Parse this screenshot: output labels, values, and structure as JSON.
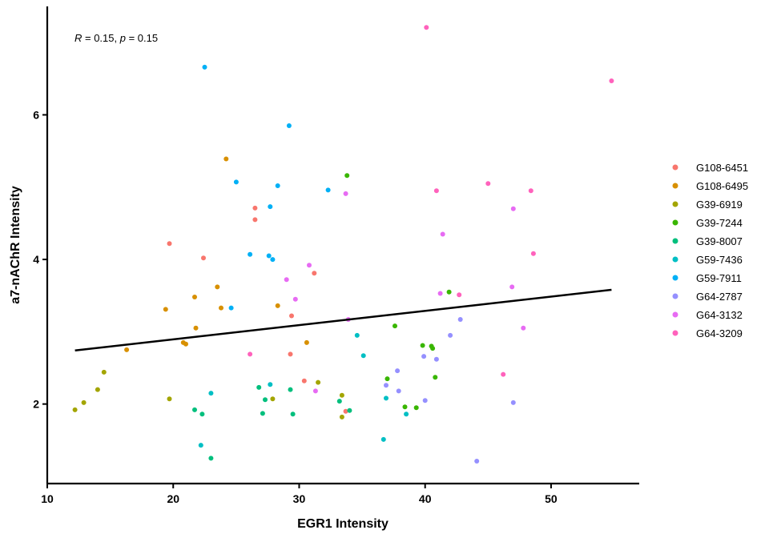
{
  "chart_data": {
    "type": "scatter",
    "xlabel": "EGR1 Intensity",
    "ylabel": "a7-nAChR Intensity",
    "xlim": [
      10,
      57
    ],
    "ylim": [
      0.9,
      7.5
    ],
    "x_ticks": [
      10,
      20,
      30,
      40,
      50
    ],
    "x_tick_labels": [
      "10",
      "20",
      "30",
      "40",
      "50"
    ],
    "y_ticks": [
      2,
      4,
      6
    ],
    "y_tick_labels": [
      "2",
      "4",
      "6"
    ],
    "grid": false,
    "legend": "right",
    "annotation": {
      "r_label": "R",
      "r_value": " = 0.15, ",
      "p_label": "p",
      "p_value": " = 0.15"
    },
    "trendline": {
      "x": [
        12.2,
        54.8
      ],
      "y": [
        2.74,
        3.58
      ]
    },
    "series": [
      {
        "name": "G108-6451",
        "color": "#F8766D",
        "x": [
          19.7,
          22.4,
          26.5,
          26.5,
          29.4,
          29.3,
          30.4,
          31.2,
          33.7
        ],
        "y": [
          4.22,
          4.02,
          4.71,
          4.55,
          3.22,
          2.69,
          2.32,
          3.81,
          1.9
        ]
      },
      {
        "name": "G108-6495",
        "color": "#D89000",
        "x": [
          19.4,
          20.8,
          21.0,
          21.7,
          21.8,
          23.5,
          23.8,
          24.2,
          28.3,
          30.6,
          16.3
        ],
        "y": [
          3.31,
          2.85,
          2.83,
          3.48,
          3.05,
          3.62,
          3.33,
          5.39,
          3.36,
          2.85,
          2.75
        ]
      },
      {
        "name": "G39-6919",
        "color": "#A3A500",
        "x": [
          12.2,
          12.9,
          14.0,
          14.5,
          19.7,
          27.9,
          31.5,
          33.4,
          33.4
        ],
        "y": [
          1.92,
          2.02,
          2.2,
          2.44,
          2.07,
          2.07,
          2.3,
          2.12,
          1.82
        ]
      },
      {
        "name": "G39-7244",
        "color": "#39B600",
        "x": [
          33.8,
          37.0,
          37.6,
          38.4,
          39.3,
          39.8,
          40.5,
          40.6,
          40.8,
          41.9
        ],
        "y": [
          5.16,
          2.35,
          3.08,
          1.96,
          1.95,
          2.81,
          2.8,
          2.77,
          2.37,
          3.55
        ]
      },
      {
        "name": "G39-8007",
        "color": "#00BF7D",
        "x": [
          21.7,
          22.3,
          23.0,
          26.8,
          27.1,
          27.3,
          29.3,
          29.5,
          33.2,
          34.0
        ],
        "y": [
          1.92,
          1.86,
          1.25,
          2.23,
          1.87,
          2.06,
          2.2,
          1.86,
          2.04,
          1.91
        ]
      },
      {
        "name": "G59-7436",
        "color": "#00BFC4",
        "x": [
          22.2,
          23.0,
          27.7,
          34.6,
          35.1,
          36.7,
          36.9,
          38.5
        ],
        "y": [
          1.43,
          2.15,
          2.27,
          2.95,
          2.67,
          1.51,
          2.08,
          1.86
        ]
      },
      {
        "name": "G59-7911",
        "color": "#00B0F6",
        "x": [
          22.5,
          24.6,
          25.0,
          26.1,
          27.6,
          27.7,
          27.9,
          28.3,
          29.2,
          32.3
        ],
        "y": [
          6.66,
          3.33,
          5.07,
          4.07,
          4.05,
          4.73,
          4.0,
          5.02,
          5.85,
          4.96
        ]
      },
      {
        "name": "G64-2787",
        "color": "#9590FF",
        "x": [
          36.9,
          37.8,
          37.9,
          39.9,
          40.0,
          40.9,
          42.0,
          42.8,
          44.1,
          47.0
        ],
        "y": [
          2.26,
          2.46,
          2.18,
          2.66,
          2.05,
          2.62,
          2.95,
          3.17,
          1.21,
          2.02
        ]
      },
      {
        "name": "G64-3132",
        "color": "#E76BF3",
        "x": [
          29.0,
          29.7,
          30.8,
          31.3,
          33.7,
          33.9,
          41.2,
          41.4,
          46.9,
          47.0,
          47.8
        ],
        "y": [
          3.72,
          3.45,
          3.92,
          2.18,
          4.91,
          3.17,
          3.53,
          4.35,
          3.62,
          4.7,
          3.05
        ]
      },
      {
        "name": "G64-3209",
        "color": "#FF62BC",
        "x": [
          26.1,
          40.1,
          40.9,
          42.7,
          45.0,
          46.2,
          48.4,
          48.6,
          54.8
        ],
        "y": [
          2.69,
          7.21,
          4.95,
          3.51,
          5.05,
          2.41,
          4.95,
          4.08,
          6.47
        ]
      }
    ]
  }
}
